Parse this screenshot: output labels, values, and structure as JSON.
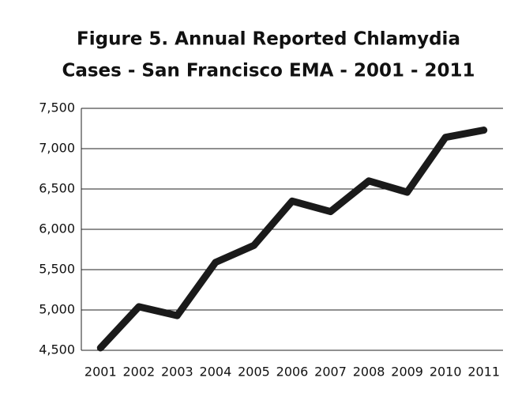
{
  "chart_data": {
    "type": "line",
    "title": [
      "Figure 5. Annual Reported Chlamydia",
      "Cases - San Francisco EMA - 2001 - 2011"
    ],
    "categories": [
      "2001",
      "2002",
      "2003",
      "2004",
      "2005",
      "2006",
      "2007",
      "2008",
      "2009",
      "2010",
      "2011"
    ],
    "values": [
      4530,
      5040,
      4930,
      5590,
      5800,
      6350,
      6220,
      6600,
      6460,
      7140,
      7230
    ],
    "color": "#1a1a1a",
    "ylim": [
      4500,
      7500
    ],
    "yticks": [
      {
        "value": 4500,
        "label": "4,500"
      },
      {
        "value": 5000,
        "label": "5,000"
      },
      {
        "value": 5500,
        "label": "5,500"
      },
      {
        "value": 6000,
        "label": "6,000"
      },
      {
        "value": 6500,
        "label": "6,500"
      },
      {
        "value": 7000,
        "label": "7,000"
      },
      {
        "value": 7500,
        "label": "7,500"
      }
    ],
    "grid": true
  }
}
